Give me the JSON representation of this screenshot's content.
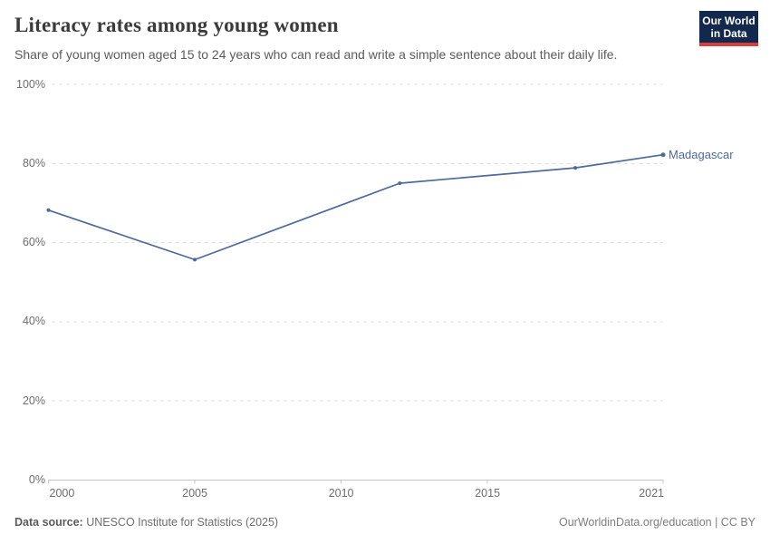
{
  "header": {
    "title": "Literacy rates among young women",
    "subtitle": "Share of young women aged 15 to 24 years who can read and write a simple sentence about their daily life."
  },
  "logo": {
    "line1": "Our World",
    "line2": "in Data",
    "bg_color": "#12294d",
    "accent_color": "#d73c3e"
  },
  "chart_data": {
    "type": "line",
    "title": "Literacy rates among young women",
    "subtitle": "Share of young women aged 15 to 24 years who can read and write a simple sentence about their daily life.",
    "entity_label": "Madagascar",
    "series": [
      {
        "name": "Madagascar",
        "color": "#4C6A9C",
        "points": [
          {
            "x": 2000,
            "y": 68.2
          },
          {
            "x": 2005,
            "y": 55.7
          },
          {
            "x": 2012,
            "y": 75.0
          },
          {
            "x": 2018,
            "y": 78.9
          },
          {
            "x": 2021,
            "y": 82.2
          }
        ]
      }
    ],
    "xlim": [
      2000,
      2021
    ],
    "ylim": [
      0,
      100
    ],
    "x_ticks": [
      2000,
      2005,
      2010,
      2015,
      2021
    ],
    "y_ticks": [
      0,
      20,
      40,
      60,
      80,
      100
    ],
    "y_tick_suffix": "%",
    "grid": "horizontal dashed",
    "legend_position": "end-of-line label"
  },
  "footer": {
    "source_label": "Data source:",
    "source_text": " UNESCO Institute for Statistics (2025)",
    "right_text": "OurWorldinData.org/education | CC BY"
  },
  "colors": {
    "line": "#4C6A9C",
    "grid": "#e2e2e2",
    "axis": "#c4c4c4",
    "tick_text": "#6e6e6e",
    "title_text": "#3b3b3b",
    "subtitle_text": "#5b5b5b",
    "footer_text": "#6e6e6e"
  }
}
